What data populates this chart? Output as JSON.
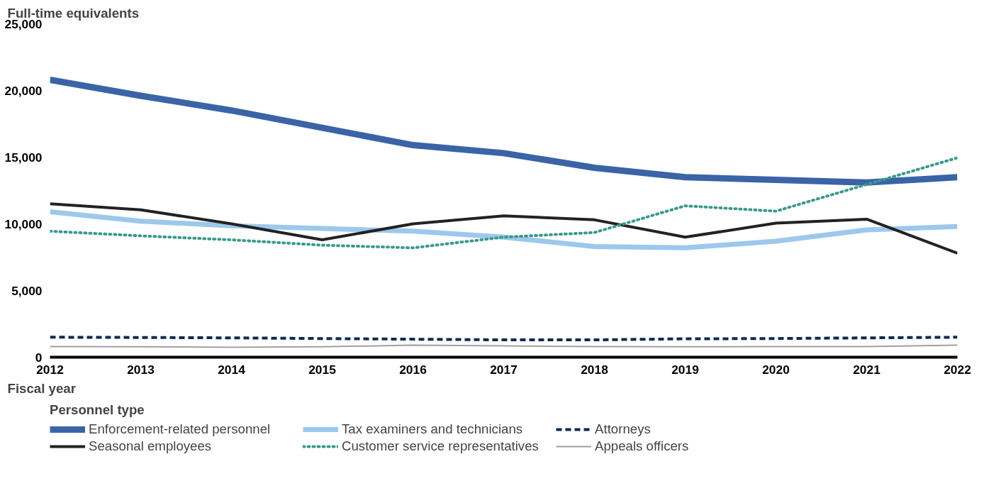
{
  "chart_data": {
    "type": "line",
    "ylabel": "Full-time equivalents",
    "xlabel": "Fiscal year",
    "legend_title": "Personnel type",
    "legend": "bottom",
    "grid": false,
    "x": [
      2012,
      2013,
      2014,
      2015,
      2016,
      2017,
      2018,
      2019,
      2020,
      2021,
      2022
    ],
    "xlim": [
      2012,
      2022
    ],
    "xticks": [
      2012,
      2013,
      2014,
      2015,
      2016,
      2017,
      2018,
      2019,
      2020,
      2021,
      2022
    ],
    "ylim": [
      0,
      25000
    ],
    "yticks": [
      {
        "value": 0,
        "label": "0"
      },
      {
        "value": 5000,
        "label": "5,000"
      },
      {
        "value": 10000,
        "label": "10,000"
      },
      {
        "value": 15000,
        "label": "15,000"
      },
      {
        "value": 20000,
        "label": "20,000"
      },
      {
        "value": 25000,
        "label": "25,000"
      }
    ],
    "series": [
      {
        "name": "Enforcement-related personnel",
        "color": "#3a64a6",
        "line_style": "solid",
        "values": [
          20800,
          19600,
          18500,
          17200,
          15900,
          15300,
          14200,
          13500,
          13300,
          13100,
          13500
        ]
      },
      {
        "name": "Tax examiners and technicians",
        "color": "#9dc8ec",
        "line_style": "solid",
        "values": [
          10900,
          10200,
          9850,
          9650,
          9450,
          9000,
          8300,
          8200,
          8700,
          9550,
          9800
        ]
      },
      {
        "name": "Attorneys",
        "color": "#0f2a4f",
        "line_style": "dashed",
        "values": [
          1500,
          1480,
          1450,
          1400,
          1350,
          1300,
          1300,
          1380,
          1400,
          1450,
          1500
        ]
      },
      {
        "name": "Seasonal employees",
        "color": "#222222",
        "line_style": "solid",
        "values": [
          11500,
          11050,
          10000,
          8800,
          10000,
          10600,
          10300,
          9000,
          10050,
          10350,
          7800
        ]
      },
      {
        "name": "Customer service representatives",
        "color": "#3a9a8a",
        "line_style": "dotted",
        "values": [
          9450,
          9100,
          8800,
          8400,
          8200,
          9000,
          9350,
          11350,
          10950,
          12950,
          14950
        ]
      },
      {
        "name": "Appeals officers",
        "color": "#a0a0a0",
        "line_style": "solid",
        "values": [
          800,
          780,
          750,
          780,
          900,
          850,
          800,
          780,
          800,
          800,
          900
        ]
      }
    ]
  }
}
